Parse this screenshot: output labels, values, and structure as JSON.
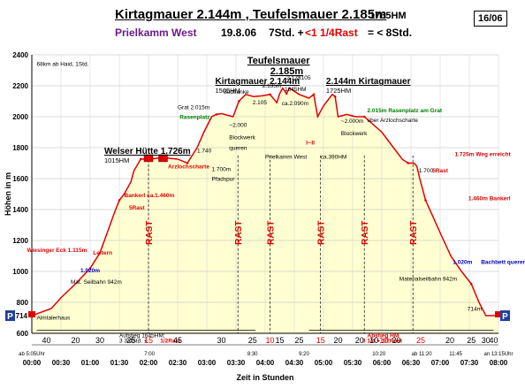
{
  "header": {
    "title": "Kirtagmauer 2.144m , Teufelsmauer 2.185m",
    "total_hm": "1765HM",
    "page": "16/06",
    "route": "Prielkamm West",
    "date": "19.8.06",
    "duration_prefix": "7Std. +",
    "duration_rest": "<1 1/4Rast",
    "duration_suffix": "= < 8Std."
  },
  "colors": {
    "profile_line": "#e00000",
    "fill": "#ffffd2",
    "rest_text": "#e00000",
    "route_text": "#6a1b8a",
    "green_text": "#008000",
    "blue_text": "#0000c0",
    "parking_bg": "#1f3f9f"
  },
  "chart_data": {
    "type": "area",
    "xlabel": "Zeit in Stunden",
    "ylabel": "Höhen in m",
    "xlim": [
      0,
      480
    ],
    "ylim": [
      600,
      2400
    ],
    "x_unit": "minutes from start",
    "xticks": [
      "00:00",
      "00:30",
      "01:00",
      "01:30",
      "02:00",
      "02:30",
      "03:00",
      "03:30",
      "04:00",
      "04:30",
      "05:00",
      "05:30",
      "06:00",
      "06:30",
      "07:00",
      "07:30",
      "08:00"
    ],
    "yticks": [
      "600",
      "800",
      "1000",
      "1200",
      "1400",
      "1600",
      "1800",
      "2000",
      "2200",
      "2400"
    ],
    "y_marker": "714",
    "series": [
      {
        "x": [
          0,
          20,
          30,
          45,
          60,
          70,
          77,
          85,
          90,
          95,
          102,
          105,
          112,
          120,
          135,
          150,
          160,
          170,
          177,
          185,
          190,
          195,
          207,
          210,
          213,
          220,
          228,
          237,
          245,
          252,
          255,
          258,
          262,
          265,
          275,
          285,
          290,
          294,
          300,
          309,
          312,
          315,
          324,
          333,
          342,
          360,
          372,
          381,
          387,
          393,
          396,
          399,
          405,
          420,
          431,
          442,
          452,
          460,
          467,
          480
        ],
        "y": [
          714,
          760,
          830,
          920,
          1020,
          1120,
          1240,
          1380,
          1460,
          1500,
          1580,
          1650,
          1726,
          1726,
          1735,
          1726,
          1700,
          1800,
          1900,
          2000,
          2015,
          2020,
          2000,
          2050,
          2100,
          2144,
          2130,
          2135,
          2144,
          2090,
          2150,
          2185,
          2150,
          2185,
          2144,
          2120,
          2144,
          2000,
          2070,
          2144,
          2130,
          2000,
          2015,
          2000,
          2000,
          1900,
          1800,
          1725,
          1700,
          1700,
          1680,
          1600,
          1460,
          1250,
          1100,
          1000,
          920,
          800,
          714,
          714
        ]
      }
    ],
    "timeline_times": [
      {
        "t": "7:00",
        "x": 121
      },
      {
        "t": "8:30",
        "x": 227
      },
      {
        "t": "9:20",
        "x": 280
      },
      {
        "t": "10:20",
        "x": 357
      },
      {
        "t": "ab 11:20",
        "x": 401
      },
      {
        "t": "11:45",
        "x": 436
      },
      {
        "t": "ab 5:05Uhr",
        "x": 0
      },
      {
        "t": "an 13:15Uhr",
        "x": 480
      }
    ],
    "durations": [
      {
        "label": "40",
        "x": 15,
        "red": false
      },
      {
        "label": "20",
        "x": 45,
        "red": false
      },
      {
        "label": "30",
        "x": 70,
        "red": false
      },
      {
        "label": "25",
        "x": 102,
        "red": false
      },
      {
        "label": "15",
        "x": 120,
        "red": true
      },
      {
        "label": "45",
        "x": 150,
        "red": false
      },
      {
        "label": "30",
        "x": 195,
        "red": false
      },
      {
        "label": "25",
        "x": 227,
        "red": false
      },
      {
        "label": "10",
        "x": 245,
        "red": true
      },
      {
        "label": "15",
        "x": 255,
        "red": false
      },
      {
        "label": "25",
        "x": 275,
        "red": false
      },
      {
        "label": "15",
        "x": 297,
        "red": true
      },
      {
        "label": "20",
        "x": 315,
        "red": false
      },
      {
        "label": "20",
        "x": 337,
        "red": false
      },
      {
        "label": "10",
        "x": 352,
        "red": false
      },
      {
        "label": "10",
        "x": 362,
        "red": true
      },
      {
        "label": "20",
        "x": 375,
        "red": false
      },
      {
        "label": "25",
        "x": 400,
        "red": true
      },
      {
        "label": "20",
        "x": 430,
        "red": false
      },
      {
        "label": "25",
        "x": 452,
        "red": false
      },
      {
        "label": "30",
        "x": 467,
        "red": false
      },
      {
        "label": "40",
        "x": 475,
        "red": false
      }
    ],
    "rest_stops": [
      {
        "label": "RAST",
        "x": 120
      },
      {
        "label": "RAST",
        "x": 212
      },
      {
        "label": "RAST",
        "x": 245
      },
      {
        "label": "RAST",
        "x": 297
      },
      {
        "label": "RAST",
        "x": 342
      },
      {
        "label": "RAST",
        "x": 392
      }
    ],
    "peaks": [
      {
        "name": "Kirtagmauer 2.144m",
        "sub": "1505HM",
        "x": 225
      },
      {
        "name": "Teufelsmauer",
        "sub": "2.185m",
        "x": 258
      },
      {
        "name": "2.144m Kirtagmauer",
        "sub": "1725HM",
        "x": 339
      },
      {
        "name": "Welser Hütte 1.726m",
        "sub": "1015HM",
        "x": 120
      }
    ],
    "annotations": [
      {
        "text": "68km ab Haid, 1Std.",
        "color": "#000",
        "x": 5,
        "y": 2330
      },
      {
        "text": "Arzlochscharte",
        "color": "#e00000",
        "x": 140,
        "y": 1665
      },
      {
        "text": "1.740",
        "color": "#000",
        "x": 170,
        "y": 1770
      },
      {
        "text": "1.700m",
        "color": "#000",
        "x": 185,
        "y": 1650
      },
      {
        "text": "Pfadspur",
        "color": "#000",
        "x": 185,
        "y": 1585
      },
      {
        "text": "Bankerl ca.1.460m",
        "color": "#e00000",
        "x": 95,
        "y": 1480
      },
      {
        "text": "5Rast",
        "color": "#e00000",
        "x": 100,
        "y": 1400
      },
      {
        "text": "Grat 2.015m",
        "color": "#000",
        "x": 150,
        "y": 2050
      },
      {
        "text": "Rasenplatz",
        "color": "#008000",
        "x": 152,
        "y": 1985
      },
      {
        "text": "Südflanke",
        "color": "#000",
        "x": 197,
        "y": 2150
      },
      {
        "text": "~2.000",
        "color": "#000",
        "x": 203,
        "y": 1935
      },
      {
        "text": "Blockwerk",
        "color": "#000",
        "x": 203,
        "y": 1855
      },
      {
        "text": "queren",
        "color": "#000",
        "x": 203,
        "y": 1785
      },
      {
        "text": "2.135m",
        "color": "#000",
        "x": 237,
        "y": 2190
      },
      {
        "text": "2.105",
        "color": "#000",
        "x": 227,
        "y": 2080
      },
      {
        "text": "2.173",
        "color": "#000",
        "x": 262,
        "y": 2240
      },
      {
        "text": "1645HM",
        "color": "#000",
        "x": 260,
        "y": 2165
      },
      {
        "text": "ca.2.090m",
        "color": "#000",
        "x": 257,
        "y": 2075
      },
      {
        "text": "2.105",
        "color": "#000",
        "x": 272,
        "y": 2240
      },
      {
        "text": "~2.000m",
        "color": "#000",
        "x": 318,
        "y": 1960
      },
      {
        "text": "Blockwerk",
        "color": "#000",
        "x": 318,
        "y": 1880
      },
      {
        "text": "2.015m Rasenplatz am Grat",
        "color": "#008000",
        "x": 345,
        "y": 2030
      },
      {
        "text": "über Arzlochscharte",
        "color": "#000",
        "x": 345,
        "y": 1965
      },
      {
        "text": "Prielkamm West",
        "color": "#000",
        "x": 240,
        "y": 1730
      },
      {
        "text": "ca.390HM",
        "color": "#000",
        "x": 297,
        "y": 1730
      },
      {
        "text": "I--II",
        "color": "#e00000",
        "x": 282,
        "y": 1820
      },
      {
        "text": "1.725m Weg erreicht",
        "color": "#e00000",
        "x": 435,
        "y": 1745
      },
      {
        "text": "1.700",
        "color": "#000",
        "x": 398,
        "y": 1640
      },
      {
        "text": "5Rast",
        "color": "#e00000",
        "x": 412,
        "y": 1640
      },
      {
        "text": "1.460m Bankerl",
        "color": "#e00000",
        "x": 449,
        "y": 1460
      },
      {
        "text": "Wiesinger Eck 1.115m",
        "color": "#e00000",
        "x": -5,
        "y": 1125
      },
      {
        "text": "Leitern",
        "color": "#e00000",
        "x": 63,
        "y": 1110
      },
      {
        "text": "1.020m",
        "color": "#0000c0",
        "x": 50,
        "y": 995
      },
      {
        "text": "Mat. Seilbahn 942m",
        "color": "#000",
        "x": 40,
        "y": 920
      },
      {
        "text": "1.020m",
        "color": "#0000c0",
        "x": 433,
        "y": 1050
      },
      {
        "text": "Bachbett queren",
        "color": "#0000c0",
        "x": 462,
        "y": 1050
      },
      {
        "text": "Materialseilbahn 942m",
        "color": "#000",
        "x": 378,
        "y": 940
      },
      {
        "text": "714m",
        "color": "#000",
        "x": 448,
        "y": 745
      },
      {
        "text": "Almtalerhaus",
        "color": "#000",
        "x": 5,
        "y": 690
      },
      {
        "text": "Aufstieg 1645HM;",
        "color": "#000",
        "x": 90,
        "y": 575
      },
      {
        "text": "3 3/4Std. +",
        "color": "#000",
        "x": 90,
        "y": 540
      },
      {
        "text": "1/2Rast",
        "color": "#e00000",
        "x": 132,
        "y": 540
      },
      {
        "text": "Abstieg  HM",
        "color": "#e00000",
        "x": 345,
        "y": 575
      },
      {
        "text": "3 1/4 + 1/2Rast",
        "color": "#e00000",
        "x": 340,
        "y": 540
      }
    ]
  }
}
